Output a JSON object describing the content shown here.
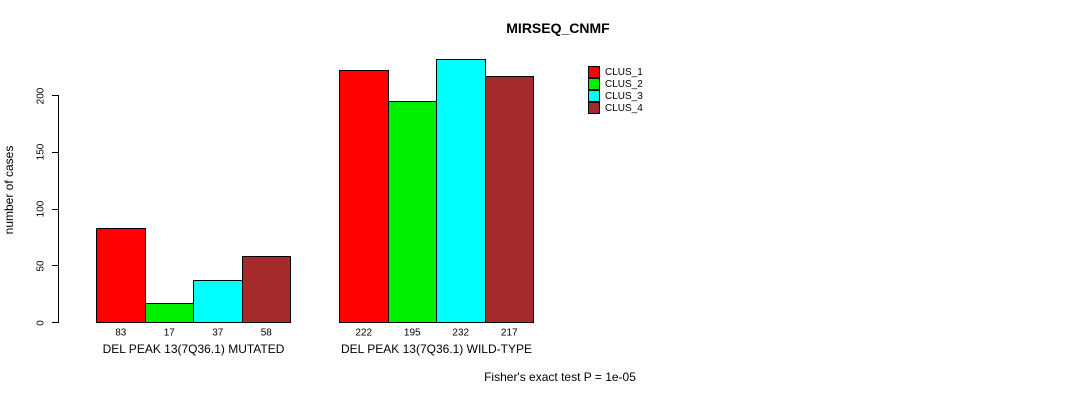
{
  "chart_data": {
    "type": "bar",
    "title": "MIRSEQ_CNMF",
    "ylabel": "number of cases",
    "xlabel": "",
    "ylim": [
      0,
      232
    ],
    "yticks": [
      0,
      50,
      100,
      150,
      200
    ],
    "grid": false,
    "legend_position": "right",
    "categories": [
      "DEL PEAK 13(7Q36.1) MUTATED",
      "DEL PEAK 13(7Q36.1) WILD-TYPE"
    ],
    "series": [
      {
        "name": "CLUS_1",
        "color": "#ff0000",
        "values": [
          83,
          222
        ]
      },
      {
        "name": "CLUS_2",
        "color": "#00ee00",
        "values": [
          17,
          195
        ]
      },
      {
        "name": "CLUS_3",
        "color": "#00ffff",
        "values": [
          37,
          232
        ]
      },
      {
        "name": "CLUS_4",
        "color": "#a52a2a",
        "values": [
          58,
          217
        ]
      }
    ],
    "bar_value_labels": [
      [
        83,
        17,
        37,
        58
      ],
      [
        222,
        195,
        232,
        217
      ]
    ],
    "annotation": "Fisher's exact test P = 1e-05"
  }
}
